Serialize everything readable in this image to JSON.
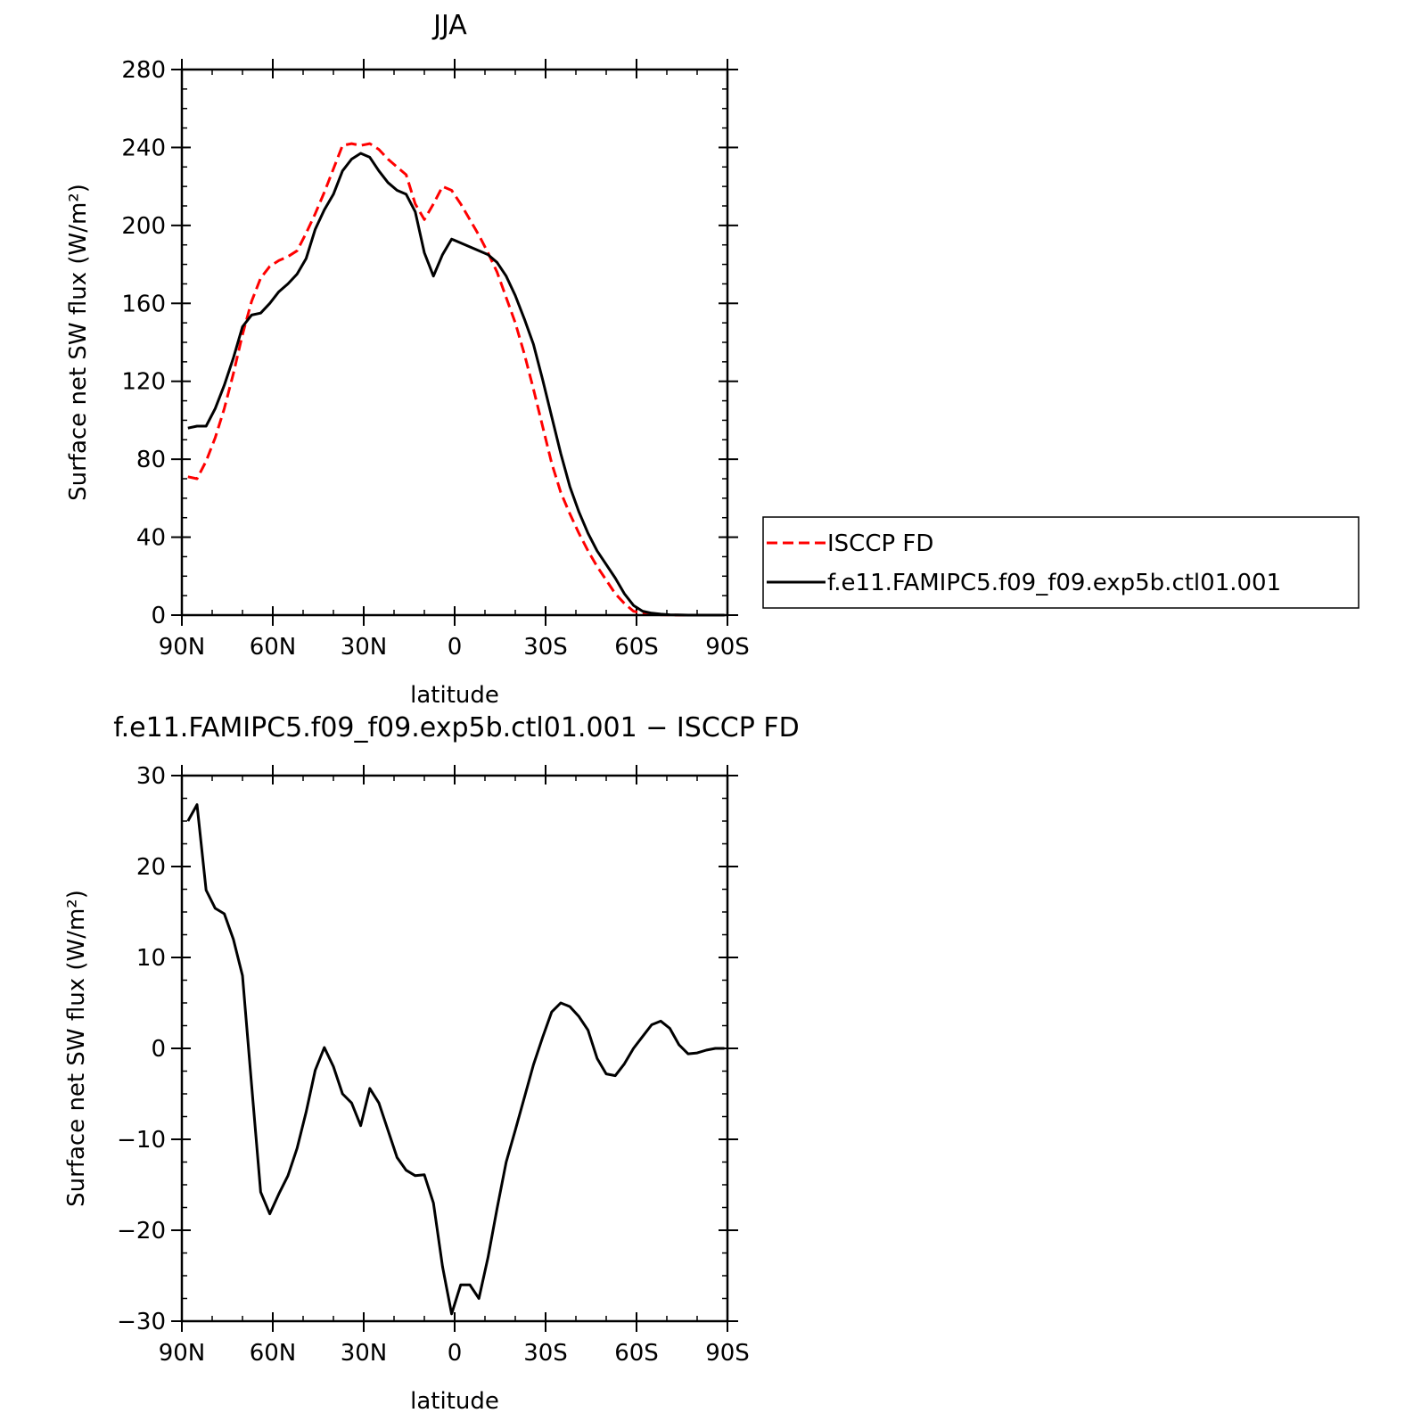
{
  "chart_data": [
    {
      "type": "line",
      "title": "JJA",
      "xlabel": "latitude",
      "ylabel": "Surface net SW flux (W/m²)",
      "x_tick_labels": [
        "90N",
        "60N",
        "30N",
        "0",
        "30S",
        "60S",
        "90S"
      ],
      "x_ticks": [
        90,
        60,
        30,
        0,
        -30,
        -60,
        -90
      ],
      "xlim": [
        90,
        -90
      ],
      "ylim": [
        0,
        280
      ],
      "y_ticks": [
        0,
        40,
        80,
        120,
        160,
        200,
        240,
        280
      ],
      "legend_position": "right",
      "series": [
        {
          "name": "ISCCP FD",
          "color": "#ff0000",
          "dash": "dashed",
          "x": [
            88,
            85,
            82,
            79,
            76,
            73,
            70,
            67,
            64,
            61,
            58,
            55,
            52,
            49,
            46,
            43,
            40,
            37,
            34,
            31,
            28,
            25,
            22,
            19,
            16,
            13,
            10,
            7,
            4,
            1,
            -2,
            -5,
            -8,
            -11,
            -14,
            -17,
            -20,
            -23,
            -26,
            -29,
            -32,
            -35,
            -38,
            -41,
            -44,
            -47,
            -50,
            -53,
            -56,
            -59,
            -62,
            -65,
            -68,
            -71,
            -74,
            -77,
            -80,
            -83,
            -86,
            -89
          ],
          "y": [
            71,
            70,
            79,
            91,
            106,
            124,
            144,
            161,
            173,
            179,
            182,
            184,
            187,
            196,
            206,
            217,
            229,
            241,
            242,
            241,
            242,
            239,
            234,
            230,
            226,
            211,
            203,
            211,
            220,
            218,
            211,
            203,
            195,
            186,
            176,
            163,
            150,
            134,
            116,
            97,
            78,
            63,
            52,
            42,
            33,
            25,
            18,
            11,
            6,
            2,
            1,
            0.5,
            0.2,
            0.1,
            0,
            0,
            0,
            0,
            0,
            0
          ]
        },
        {
          "name": "f.e11.FAMIPC5.f09_f09.exp5b.ctl01.001",
          "color": "#000000",
          "dash": "solid",
          "x": [
            88,
            85,
            82,
            79,
            76,
            73,
            70,
            67,
            64,
            61,
            58,
            55,
            52,
            49,
            46,
            43,
            40,
            37,
            34,
            31,
            28,
            25,
            22,
            19,
            16,
            13,
            10,
            7,
            4,
            1,
            -2,
            -5,
            -8,
            -11,
            -14,
            -17,
            -20,
            -23,
            -26,
            -29,
            -32,
            -35,
            -38,
            -41,
            -44,
            -47,
            -50,
            -53,
            -56,
            -59,
            -62,
            -65,
            -68,
            -71,
            -74,
            -77,
            -80,
            -83,
            -86,
            -89
          ],
          "y": [
            96,
            97,
            97,
            106,
            118,
            132,
            148,
            154,
            155,
            160,
            166,
            170,
            175,
            183,
            198,
            208,
            216,
            228,
            234,
            237,
            235,
            228,
            222,
            218,
            216,
            207,
            186,
            174,
            185,
            193,
            191,
            189,
            187,
            185,
            181,
            174,
            164,
            152,
            139,
            121,
            102,
            83,
            66,
            53,
            42,
            33,
            26,
            19,
            11,
            5,
            2,
            1,
            0.5,
            0.2,
            0.1,
            0,
            0,
            0,
            0,
            0
          ]
        }
      ]
    },
    {
      "type": "line",
      "title": "f.e11.FAMIPC5.f09_f09.exp5b.ctl01.001 − ISCCP FD",
      "xlabel": "latitude",
      "ylabel": "Surface net SW flux (W/m²)",
      "x_tick_labels": [
        "90N",
        "60N",
        "30N",
        "0",
        "30S",
        "60S",
        "90S"
      ],
      "x_ticks": [
        90,
        60,
        30,
        0,
        -30,
        -60,
        -90
      ],
      "xlim": [
        90,
        -90
      ],
      "ylim": [
        -30,
        30
      ],
      "y_tick_labels": [
        "−30",
        "−20",
        "−10",
        "0",
        "10",
        "20",
        "30"
      ],
      "y_ticks": [
        -30,
        -20,
        -10,
        0,
        10,
        20,
        30
      ],
      "series": [
        {
          "color": "#000000",
          "dash": "solid",
          "x": [
            88,
            85,
            82,
            79,
            76,
            73,
            70,
            67,
            64,
            61,
            58,
            55,
            52,
            49,
            46,
            43,
            40,
            37,
            34,
            31,
            28,
            25,
            22,
            19,
            16,
            13,
            10,
            7,
            4,
            1,
            -2,
            -5,
            -8,
            -11,
            -14,
            -17,
            -20,
            -23,
            -26,
            -29,
            -32,
            -35,
            -38,
            -41,
            -44,
            -47,
            -50,
            -53,
            -56,
            -59,
            -62,
            -65,
            -68,
            -71,
            -74,
            -77,
            -80,
            -83,
            -86,
            -89
          ],
          "y": [
            25,
            26.8,
            17.4,
            15.4,
            14.8,
            12,
            8,
            -4,
            -15.8,
            -18.2,
            -16,
            -14,
            -11,
            -7,
            -2.4,
            0.1,
            -2,
            -5,
            -6,
            -8.5,
            -4.4,
            -6,
            -9,
            -12,
            -13.4,
            -14,
            -13.9,
            -17,
            -24,
            -29.2,
            -26,
            -26,
            -27.5,
            -23,
            -17.6,
            -12.5,
            -9,
            -5.4,
            -1.8,
            1.2,
            4,
            5,
            4.6,
            3.5,
            2,
            -1.1,
            -2.8,
            -3,
            -1.7,
            0,
            1.3,
            2.6,
            3,
            2.2,
            0.4,
            -0.6,
            -0.5,
            -0.2,
            0,
            0
          ]
        }
      ]
    }
  ]
}
